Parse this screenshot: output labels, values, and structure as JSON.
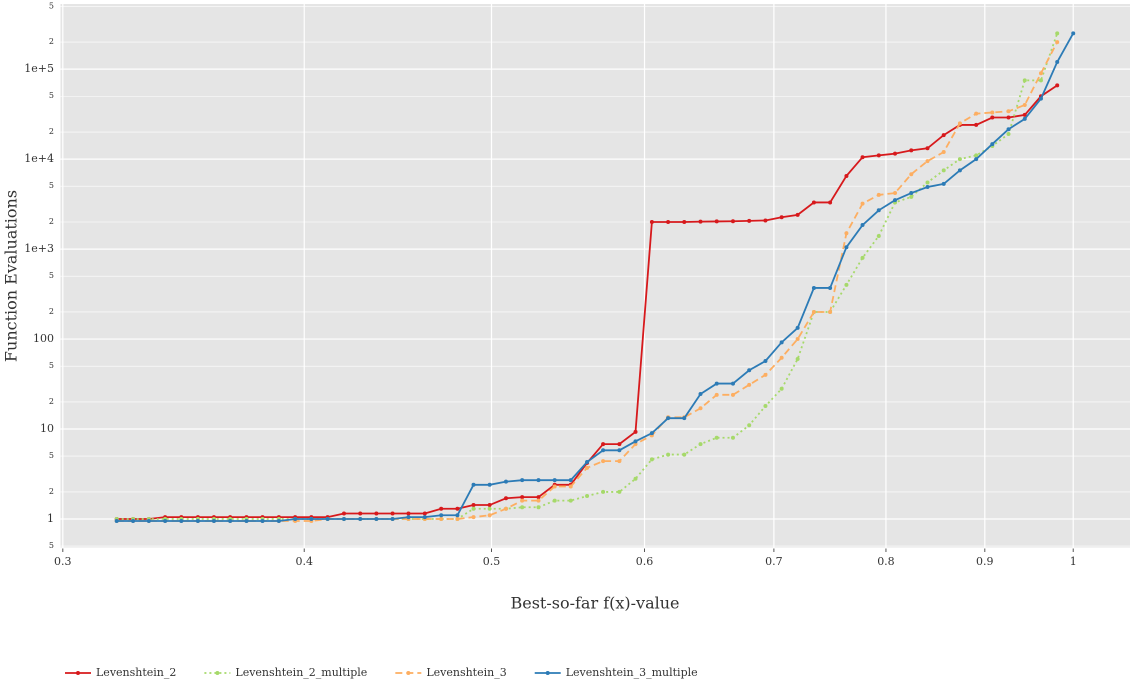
{
  "chart_data": {
    "type": "line",
    "xlabel": "Best-so-far f(x)-value",
    "ylabel": "Function Evaluations",
    "xscale": "log",
    "yscale": "log",
    "grid": true,
    "legend": "bottom",
    "xlim": [
      0.299,
      1.07
    ],
    "ylim": [
      0.476,
      530000
    ],
    "xticks": [
      0.3,
      0.4,
      0.5,
      0.6,
      0.7,
      0.8,
      0.9,
      1
    ],
    "yticks": [
      {
        "value": 0.5,
        "label": "5"
      },
      1,
      2,
      5,
      10,
      {
        "value": 20,
        "label": "2"
      },
      {
        "value": 50,
        "label": "5"
      },
      100,
      {
        "value": 200,
        "label": "2"
      },
      {
        "value": 500,
        "label": "5"
      },
      {
        "value": 1000,
        "label": "1e+3"
      },
      {
        "value": 2000,
        "label": "2"
      },
      {
        "value": 5000,
        "label": "5"
      },
      {
        "value": 10000,
        "label": "1e+4"
      },
      {
        "value": 20000,
        "label": "2"
      },
      {
        "value": 50000,
        "label": "5"
      },
      {
        "value": 100000,
        "label": "1e+5"
      },
      {
        "value": 200000,
        "label": "2"
      },
      {
        "value": 500000,
        "label": "5"
      }
    ],
    "x": [
      0.3199,
      0.3262,
      0.3324,
      0.3389,
      0.3455,
      0.3524,
      0.3592,
      0.3662,
      0.3734,
      0.3806,
      0.3881,
      0.3957,
      0.4034,
      0.4113,
      0.4194,
      0.4276,
      0.4359,
      0.4444,
      0.4529,
      0.4618,
      0.4709,
      0.4801,
      0.4894,
      0.4989,
      0.5087,
      0.5186,
      0.5288,
      0.5391,
      0.5495,
      0.5603,
      0.5711,
      0.5823,
      0.5936,
      0.6053,
      0.6171,
      0.6291,
      0.6414,
      0.6539,
      0.6667,
      0.6797,
      0.693,
      0.7065,
      0.7201,
      0.7342,
      0.7485,
      0.7632,
      0.778,
      0.7932,
      0.8087,
      0.8245,
      0.8406,
      0.857,
      0.8737,
      0.8908,
      0.9081,
      0.9258,
      0.9439,
      0.9623,
      0.9811,
      1.0
    ],
    "series": [
      {
        "name": "Levenshtein_2",
        "color": "#d7191c",
        "linestyle": "solid",
        "values": [
          1,
          1,
          1,
          1.05,
          1.05,
          1.05,
          1.05,
          1.05,
          1.05,
          1.05,
          1.05,
          1.05,
          1.05,
          1.05,
          1.15,
          1.15,
          1.15,
          1.15,
          1.15,
          1.15,
          1.3,
          1.3,
          1.43,
          1.43,
          1.7,
          1.75,
          1.75,
          2.4,
          2.4,
          4.2,
          6.8,
          6.8,
          9.3,
          2000,
          2000,
          2000,
          2020,
          2030,
          2040,
          2060,
          2080,
          2260,
          2400,
          3300,
          3300,
          6500,
          10500,
          11000,
          11500,
          12500,
          13200,
          18500,
          24000,
          24000,
          29000,
          29000,
          31000,
          50000,
          66000,
          null
        ]
      },
      {
        "name": "Levenshtein_2_multiple",
        "color": "#a6d96a",
        "linestyle": "dotted",
        "values": [
          1,
          1,
          1,
          1,
          1,
          1,
          1,
          1,
          1,
          1,
          1,
          1,
          1,
          1,
          1,
          1,
          1,
          1,
          1,
          1,
          1,
          1,
          1.3,
          1.3,
          1.3,
          1.35,
          1.35,
          1.6,
          1.6,
          1.8,
          2,
          2,
          2.8,
          4.6,
          5.2,
          5.2,
          6.8,
          8,
          8,
          11,
          18,
          28,
          60,
          200,
          200,
          400,
          800,
          1400,
          3300,
          3800,
          5500,
          7500,
          10000,
          11000,
          14000,
          19000,
          75000,
          75000,
          250000,
          null
        ]
      },
      {
        "name": "Levenshtein_3",
        "color": "#fdae61",
        "linestyle": "dashed",
        "values": [
          0.95,
          0.95,
          0.95,
          0.95,
          0.95,
          0.95,
          0.95,
          0.95,
          0.95,
          0.95,
          0.95,
          0.95,
          0.95,
          1,
          1,
          1,
          1,
          1,
          1,
          1,
          1,
          1,
          1.05,
          1.1,
          1.3,
          1.6,
          1.6,
          2.3,
          2.3,
          3.7,
          4.4,
          4.4,
          6.8,
          8.5,
          13.5,
          13.5,
          17,
          24,
          24,
          31,
          40,
          62,
          100,
          200,
          200,
          1500,
          3200,
          4000,
          4200,
          6800,
          9500,
          12000,
          25000,
          32000,
          33000,
          34000,
          40000,
          90000,
          200000,
          null
        ]
      },
      {
        "name": "Levenshtein_3_multiple",
        "color": "#2c7bb6",
        "linestyle": "solid",
        "values": [
          0.95,
          0.95,
          0.95,
          0.95,
          0.95,
          0.95,
          0.95,
          0.95,
          0.95,
          0.95,
          0.95,
          1,
          1,
          1,
          1,
          1,
          1,
          1,
          1.05,
          1.05,
          1.1,
          1.1,
          2.4,
          2.4,
          2.6,
          2.7,
          2.7,
          2.7,
          2.7,
          4.3,
          5.8,
          5.8,
          7.3,
          9,
          13.2,
          13.2,
          24.5,
          32,
          32,
          45,
          57,
          92,
          133,
          370,
          370,
          1050,
          1850,
          2700,
          3500,
          4200,
          4900,
          5300,
          7500,
          10000,
          14700,
          21500,
          28000,
          47000,
          120000,
          250000
        ]
      }
    ]
  }
}
